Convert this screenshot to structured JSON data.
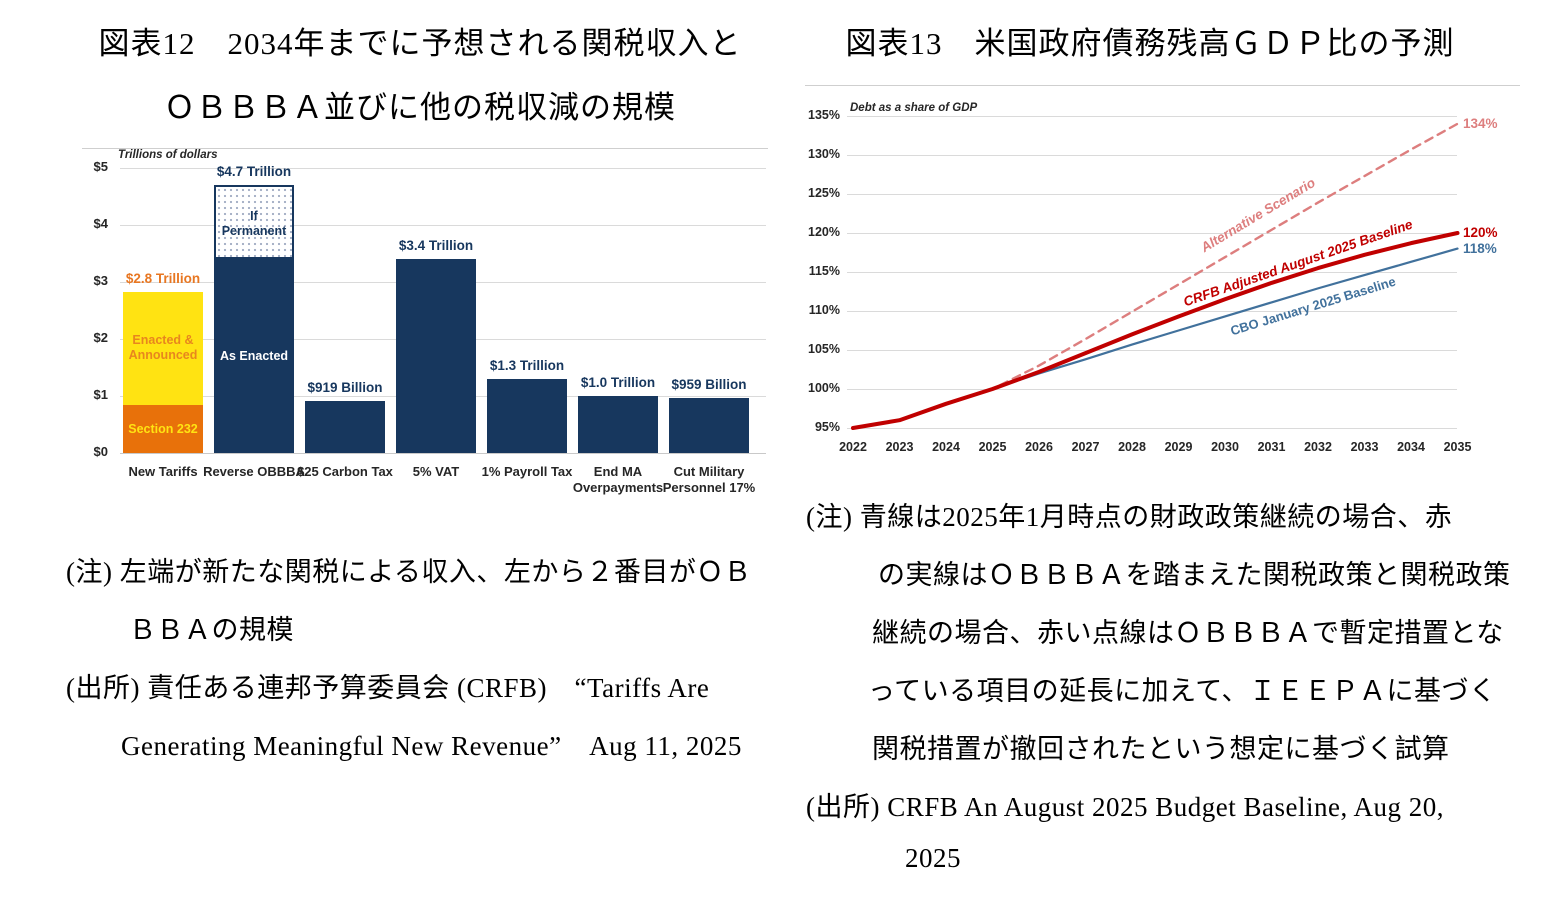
{
  "left": {
    "title_line1": "図表12　2034年までに予想される関税収入と",
    "title_line2": "ＯＢＢＢＡ並びに他の税収減の規模",
    "notes": [
      "(注) 左端が新たな関税による収入、左から２番目がＯＢ",
      "ＢＢＡの規模",
      "(出所) 責任ある連邦予算委員会 (CRFB)　“Tariffs Are",
      "Generating Meaningful New Revenue”　Aug 11, 2025"
    ]
  },
  "right": {
    "title": "図表13　米国政府債務残高ＧＤＰ比の予測",
    "notes": [
      "(注) 青線は2025年1月時点の財政政策継続の場合、赤",
      "の実線はＯＢＢＢＡを踏まえた関税政策と関税政策",
      "継続の場合、赤い点線はＯＢＢＢＡで暫定措置とな",
      "っている項目の延長に加えて、ＩＥＥＰＡに基づく",
      "関税措置が撤回されたという想定に基づく試算",
      "(出所) CRFB An August 2025 Budget Baseline, Aug 20,",
      "2025"
    ]
  },
  "chart_data": [
    {
      "type": "bar",
      "axis_label": "Trillions of dollars",
      "ylim": [
        0,
        5
      ],
      "yticks": [
        "$5",
        "$4",
        "$3",
        "$2",
        "$1",
        "$0"
      ],
      "grid": true,
      "colors": {
        "navy": "#17375E",
        "orange": "#E8710A",
        "yellow": "#FFE312",
        "grid": "#dadada"
      },
      "bars": [
        {
          "category": "New Tariffs",
          "total": 2.8,
          "total_label": "$2.8 Trillion",
          "total_label_color": "#E87722",
          "segments": [
            {
              "name": "Section 232",
              "value": 0.84,
              "color": "#E8710A",
              "text_color": "#FFE312"
            },
            {
              "name": "Enacted &\nAnnounced",
              "value": 1.99,
              "color": "#FFE312",
              "text_color": "#E8861E"
            }
          ]
        },
        {
          "category": "Reverse OBBBA",
          "total": 4.7,
          "total_label": "$4.7 Trillion",
          "segments": [
            {
              "name": "As Enacted",
              "value": 3.4,
              "color": "#17375E",
              "text_color": "#FFFFFF"
            },
            {
              "name": "If\nPermanent",
              "value": 1.3,
              "style": "dotted",
              "color": "#FFFFFF",
              "text_color": "#17375E"
            }
          ]
        },
        {
          "category": "$25 Carbon Tax",
          "total": 0.919,
          "total_label": "$919 Billion",
          "segments": [
            {
              "value": 0.919,
              "color": "#17375E"
            }
          ]
        },
        {
          "category": "5% VAT",
          "total": 3.4,
          "total_label": "$3.4 Trillion",
          "segments": [
            {
              "value": 3.4,
              "color": "#17375E"
            }
          ]
        },
        {
          "category": "1% Payroll Tax",
          "total": 1.3,
          "total_label": "$1.3 Trillion",
          "segments": [
            {
              "value": 1.3,
              "color": "#17375E"
            }
          ]
        },
        {
          "category": "End MA\nOverpayments",
          "total": 1.0,
          "total_label": "$1.0 Trillion",
          "segments": [
            {
              "value": 1.0,
              "color": "#17375E"
            }
          ]
        },
        {
          "category": "Cut Military\nPersonnel 17%",
          "total": 0.959,
          "total_label": "$959 Billion",
          "segments": [
            {
              "value": 0.959,
              "color": "#17375E"
            }
          ]
        }
      ]
    },
    {
      "type": "line",
      "title": "Debt as a share of GDP",
      "ylim": [
        95,
        135
      ],
      "yticks": [
        "135%",
        "130%",
        "125%",
        "120%",
        "115%",
        "110%",
        "105%",
        "100%",
        "95%"
      ],
      "x": [
        2022,
        2023,
        2024,
        2025,
        2026,
        2027,
        2028,
        2029,
        2030,
        2031,
        2032,
        2033,
        2034,
        2035
      ],
      "grid": true,
      "series": [
        {
          "name": "CBO January 2025 Baseline",
          "color": "#41719C",
          "style": "solid",
          "width": 2.2,
          "end_label": "118%",
          "values": [
            95,
            96,
            98.1,
            100,
            102,
            103.8,
            105.7,
            107.5,
            109.3,
            111.1,
            112.9,
            114.6,
            116.3,
            118
          ]
        },
        {
          "name": "Alternative Scenario",
          "color": "#DD7E7E",
          "style": "dashed",
          "width": 2.4,
          "end_label": "134%",
          "values": [
            95,
            96,
            98.1,
            100,
            103,
            106.4,
            109.9,
            113.4,
            116.9,
            120.4,
            123.9,
            127.3,
            130.7,
            134
          ]
        },
        {
          "name": "CRFB Adjusted August 2025 Baseline",
          "color": "#C00000",
          "style": "solid",
          "width": 4,
          "end_label": "120%",
          "values": [
            95,
            96,
            98.1,
            100,
            102.2,
            104.6,
            107,
            109.3,
            111.5,
            113.6,
            115.5,
            117.2,
            118.7,
            120
          ]
        }
      ]
    }
  ]
}
